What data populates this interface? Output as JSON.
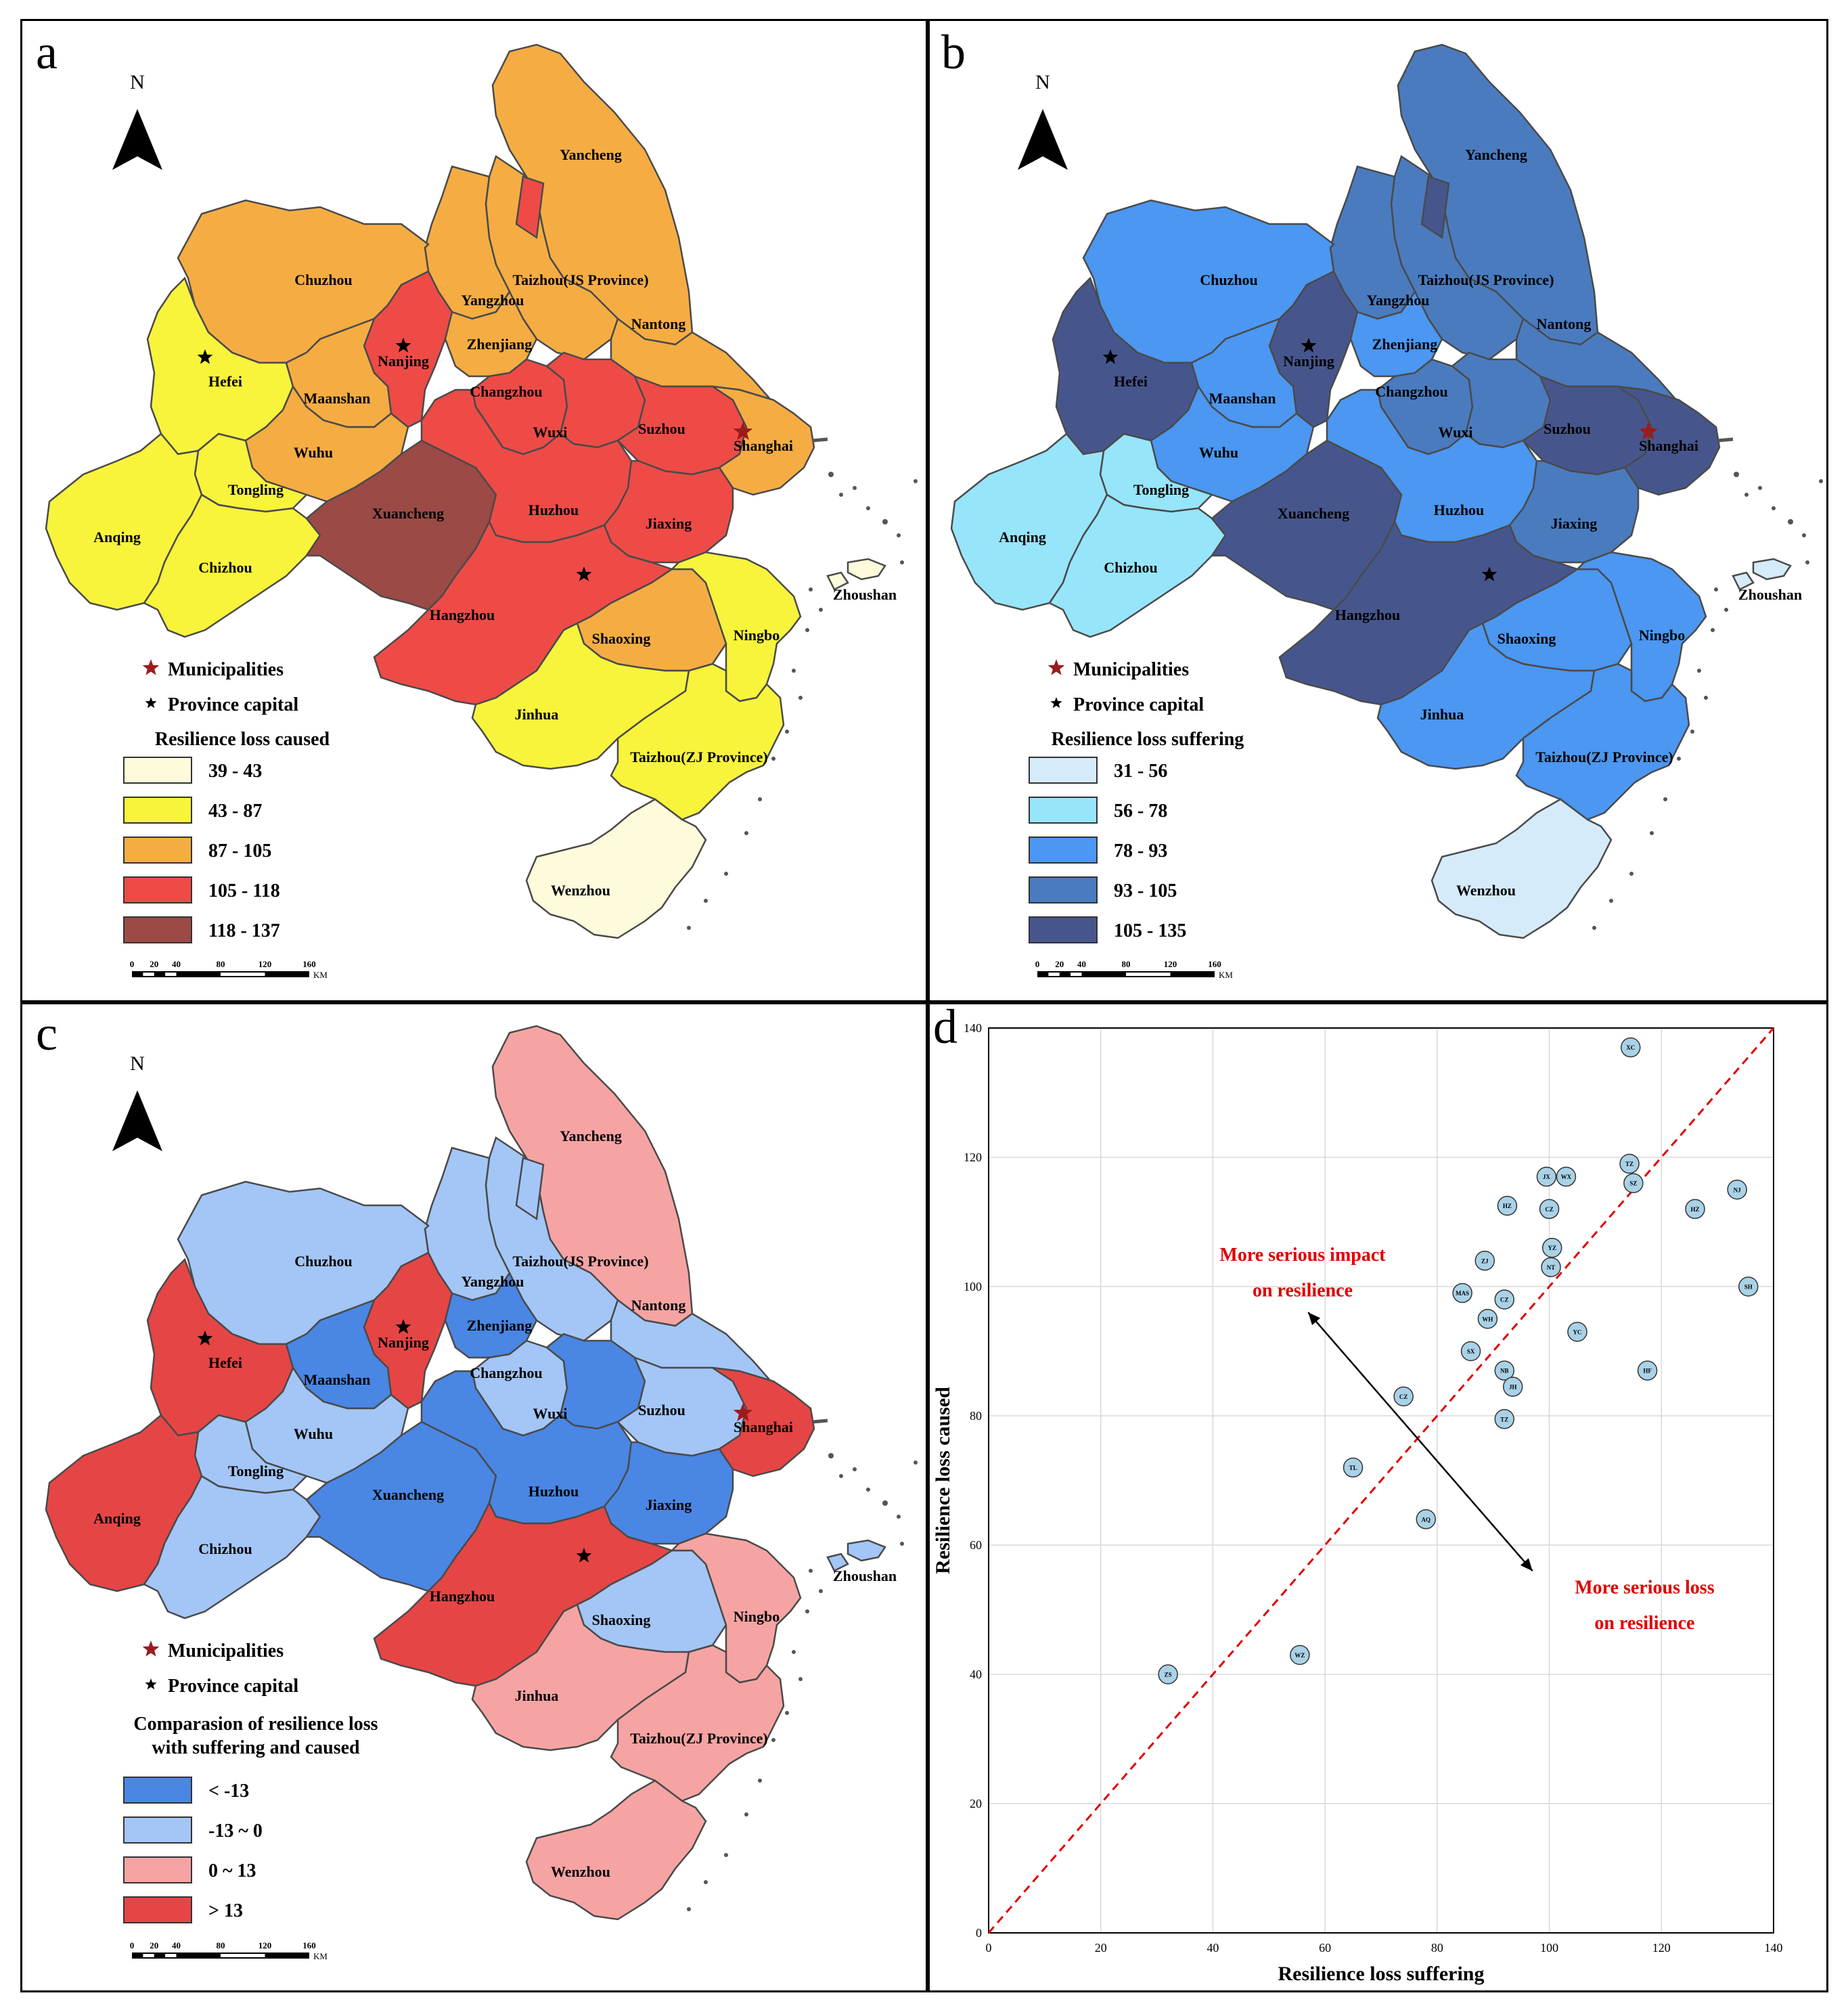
{
  "panels": {
    "a": {
      "letter": "a",
      "north": "N",
      "legend_title": "Resilience loss caused",
      "legend_title_2": "",
      "classes": [
        {
          "label": "39 - 43",
          "color": "#fefbdc"
        },
        {
          "label": "43 - 87",
          "color": "#f8f43c"
        },
        {
          "label": "87 - 105",
          "color": "#f5ad43"
        },
        {
          "label": "105 - 118",
          "color": "#ee4b47"
        },
        {
          "label": "118 - 137",
          "color": "#9b4a46"
        }
      ],
      "region_class": {
        "Yancheng": 2,
        "Taizhou(JS Province)": 2,
        "Yangzhou": 2,
        "Chuzhou": 2,
        "Nantong": 2,
        "Hefei": 1,
        "Nanjing": 3,
        "Zhenjiang": 2,
        "Maanshan": 2,
        "Changzhou": 3,
        "Wuxi": 3,
        "Suzhou": 3,
        "Shanghai": 2,
        "Wuhu": 2,
        "Tongling": 1,
        "Anqing": 1,
        "Chizhou": 1,
        "Xuancheng": 4,
        "Huzhou": 3,
        "Jiaxing": 3,
        "Hangzhou": 3,
        "Shaoxing": 2,
        "Ningbo": 1,
        "Zhoushan": 0,
        "Jinhua": 1,
        "Taizhou(ZJ Province)": 1,
        "Wenzhou": 0,
        "TaizhouStrip": 3
      }
    },
    "b": {
      "letter": "b",
      "north": "N",
      "legend_title": "Resilience loss suffering",
      "legend_title_2": "",
      "classes": [
        {
          "label": "31 - 56",
          "color": "#d5ebf9"
        },
        {
          "label": "56 - 78",
          "color": "#97e5fb"
        },
        {
          "label": "78 - 93",
          "color": "#4b97f1"
        },
        {
          "label": "93 - 105",
          "color": "#4a7bbf"
        },
        {
          "label": "105 - 135",
          "color": "#46568d"
        }
      ],
      "region_class": {
        "Yancheng": 3,
        "Taizhou(JS Province)": 3,
        "Yangzhou": 3,
        "Chuzhou": 2,
        "Nantong": 3,
        "Hefei": 4,
        "Nanjing": 4,
        "Zhenjiang": 2,
        "Maanshan": 2,
        "Changzhou": 3,
        "Wuxi": 3,
        "Suzhou": 4,
        "Shanghai": 4,
        "Wuhu": 2,
        "Tongling": 1,
        "Anqing": 1,
        "Chizhou": 1,
        "Xuancheng": 4,
        "Huzhou": 2,
        "Jiaxing": 3,
        "Hangzhou": 4,
        "Shaoxing": 2,
        "Ningbo": 2,
        "Zhoushan": 0,
        "Jinhua": 2,
        "Taizhou(ZJ Province)": 2,
        "Wenzhou": 0,
        "TaizhouStrip": 4
      }
    },
    "c": {
      "letter": "c",
      "north": "N",
      "legend_title": "Comparasion of resilience loss",
      "legend_title_2": "with suffering and caused",
      "classes": [
        {
          "label": "< -13",
          "color": "#4a86e3"
        },
        {
          "label": "-13 ~ 0",
          "color": "#a3c6f7"
        },
        {
          "label": "0 ~ 13",
          "color": "#f6a4a3"
        },
        {
          "label": "> 13",
          "color": "#e64545"
        }
      ],
      "region_class": {
        "Yancheng": 2,
        "Taizhou(JS Province)": 1,
        "Yangzhou": 1,
        "Chuzhou": 1,
        "Nantong": 1,
        "Hefei": 3,
        "Nanjing": 3,
        "Zhenjiang": 0,
        "Maanshan": 0,
        "Changzhou": 1,
        "Wuxi": 0,
        "Suzhou": 1,
        "Shanghai": 3,
        "Wuhu": 1,
        "Tongling": 1,
        "Anqing": 3,
        "Chizhou": 1,
        "Xuancheng": 0,
        "Huzhou": 0,
        "Jiaxing": 0,
        "Hangzhou": 3,
        "Shaoxing": 1,
        "Ningbo": 2,
        "Zhoushan": 1,
        "Jinhua": 2,
        "Taizhou(ZJ Province)": 2,
        "Wenzhou": 2,
        "TaizhouStrip": 1
      }
    }
  },
  "legend_common": {
    "municipalities": "Municipalities",
    "province_capital": "Province capital",
    "municipality_color": "#9b1c1c"
  },
  "scale_bar": {
    "ticks": [
      "0",
      "20",
      "40",
      "80",
      "120",
      "160"
    ],
    "unit": "KM"
  },
  "region_labels": [
    "Yancheng",
    "Taizhou(JS Province)",
    "Yangzhou",
    "Chuzhou",
    "Nantong",
    "Nanjing",
    "Zhenjiang",
    "Hefei",
    "Maanshan",
    "Changzhou",
    "Wuxi",
    "Suzhou",
    "Shanghai",
    "Wuhu",
    "Tongling",
    "Xuancheng",
    "Huzhou",
    "Jiaxing",
    "Anqing",
    "Chizhou",
    "Hangzhou",
    "Zhoushan",
    "Shaoxing",
    "Ningbo",
    "Jinhua",
    "Taizhou(ZJ Province)",
    "Wenzhou"
  ],
  "chart_data": {
    "panel_letter": "d",
    "type": "scatter",
    "xlabel": "Resilience loss suffering",
    "ylabel": "Resilience loss caused",
    "xlim": [
      0,
      140
    ],
    "ylim": [
      0,
      140
    ],
    "xticks": [
      0,
      20,
      40,
      60,
      80,
      100,
      120,
      140
    ],
    "yticks": [
      0,
      20,
      40,
      60,
      80,
      100,
      120,
      140
    ],
    "grid": true,
    "diagonal": "y = x (dashed red)",
    "annotations": [
      {
        "line1": "More serious impact",
        "line2": "on resilience"
      },
      {
        "line1": "More serious loss",
        "line2": "on resilience"
      }
    ],
    "points": [
      {
        "label": "XC",
        "x": 114.5,
        "y": 137
      },
      {
        "label": "TZ",
        "x": 114.3,
        "y": 119
      },
      {
        "label": "SZ",
        "x": 115.0,
        "y": 116
      },
      {
        "label": "JX",
        "x": 99.5,
        "y": 117
      },
      {
        "label": "WX",
        "x": 103.0,
        "y": 117
      },
      {
        "label": "NJ",
        "x": 133.5,
        "y": 115
      },
      {
        "label": "HZ",
        "x": 92.5,
        "y": 112.5
      },
      {
        "label": "CZ",
        "x": 100.0,
        "y": 112
      },
      {
        "label": "HZ",
        "x": 126.0,
        "y": 112
      },
      {
        "label": "YZ",
        "x": 100.5,
        "y": 106
      },
      {
        "label": "ZJ",
        "x": 88.5,
        "y": 104
      },
      {
        "label": "NT",
        "x": 100.3,
        "y": 103
      },
      {
        "label": "SH",
        "x": 135.5,
        "y": 100
      },
      {
        "label": "MAS",
        "x": 84.5,
        "y": 99
      },
      {
        "label": "CZ",
        "x": 92.0,
        "y": 98
      },
      {
        "label": "WH",
        "x": 89.0,
        "y": 95
      },
      {
        "label": "YC",
        "x": 105.0,
        "y": 93
      },
      {
        "label": "SX",
        "x": 86.0,
        "y": 90
      },
      {
        "label": "NB",
        "x": 92.0,
        "y": 87
      },
      {
        "label": "HF",
        "x": 117.5,
        "y": 87
      },
      {
        "label": "JH",
        "x": 93.5,
        "y": 84.5
      },
      {
        "label": "CZ",
        "x": 74.0,
        "y": 83
      },
      {
        "label": "TZ",
        "x": 92.0,
        "y": 79.5
      },
      {
        "label": "TL",
        "x": 65.0,
        "y": 72
      },
      {
        "label": "AQ",
        "x": 78.0,
        "y": 64
      },
      {
        "label": "WZ",
        "x": 55.5,
        "y": 43
      },
      {
        "label": "ZS",
        "x": 32.0,
        "y": 40
      }
    ]
  }
}
